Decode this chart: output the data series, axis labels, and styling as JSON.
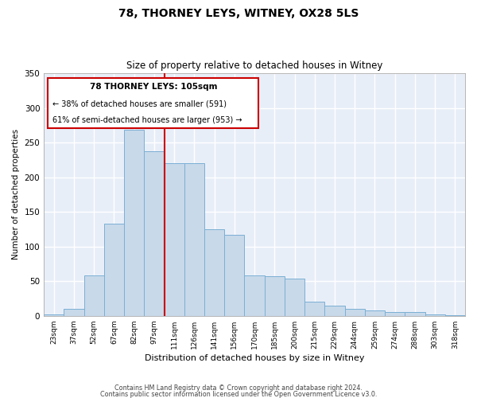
{
  "title": "78, THORNEY LEYS, WITNEY, OX28 5LS",
  "subtitle": "Size of property relative to detached houses in Witney",
  "xlabel": "Distribution of detached houses by size in Witney",
  "ylabel": "Number of detached properties",
  "categories": [
    "23sqm",
    "37sqm",
    "52sqm",
    "67sqm",
    "82sqm",
    "97sqm",
    "111sqm",
    "126sqm",
    "141sqm",
    "156sqm",
    "170sqm",
    "185sqm",
    "200sqm",
    "215sqm",
    "229sqm",
    "244sqm",
    "259sqm",
    "274sqm",
    "288sqm",
    "303sqm",
    "318sqm"
  ],
  "values": [
    2,
    10,
    58,
    133,
    268,
    237,
    220,
    220,
    125,
    117,
    58,
    57,
    54,
    20,
    15,
    10,
    8,
    5,
    5,
    2,
    1
  ],
  "bar_color": "#c8d9ea",
  "bar_edge_color": "#7bafd4",
  "marker_label": "78 THORNEY LEYS: 105sqm",
  "annotation_line1": "← 38% of detached houses are smaller (591)",
  "annotation_line2": "61% of semi-detached houses are larger (953) →",
  "vline_color": "#cc0000",
  "background_color": "#e8eef8",
  "grid_color": "#ffffff",
  "footer_line1": "Contains HM Land Registry data © Crown copyright and database right 2024.",
  "footer_line2": "Contains public sector information licensed under the Open Government Licence v3.0.",
  "ylim": [
    0,
    350
  ],
  "yticks": [
    0,
    50,
    100,
    150,
    200,
    250,
    300,
    350
  ]
}
